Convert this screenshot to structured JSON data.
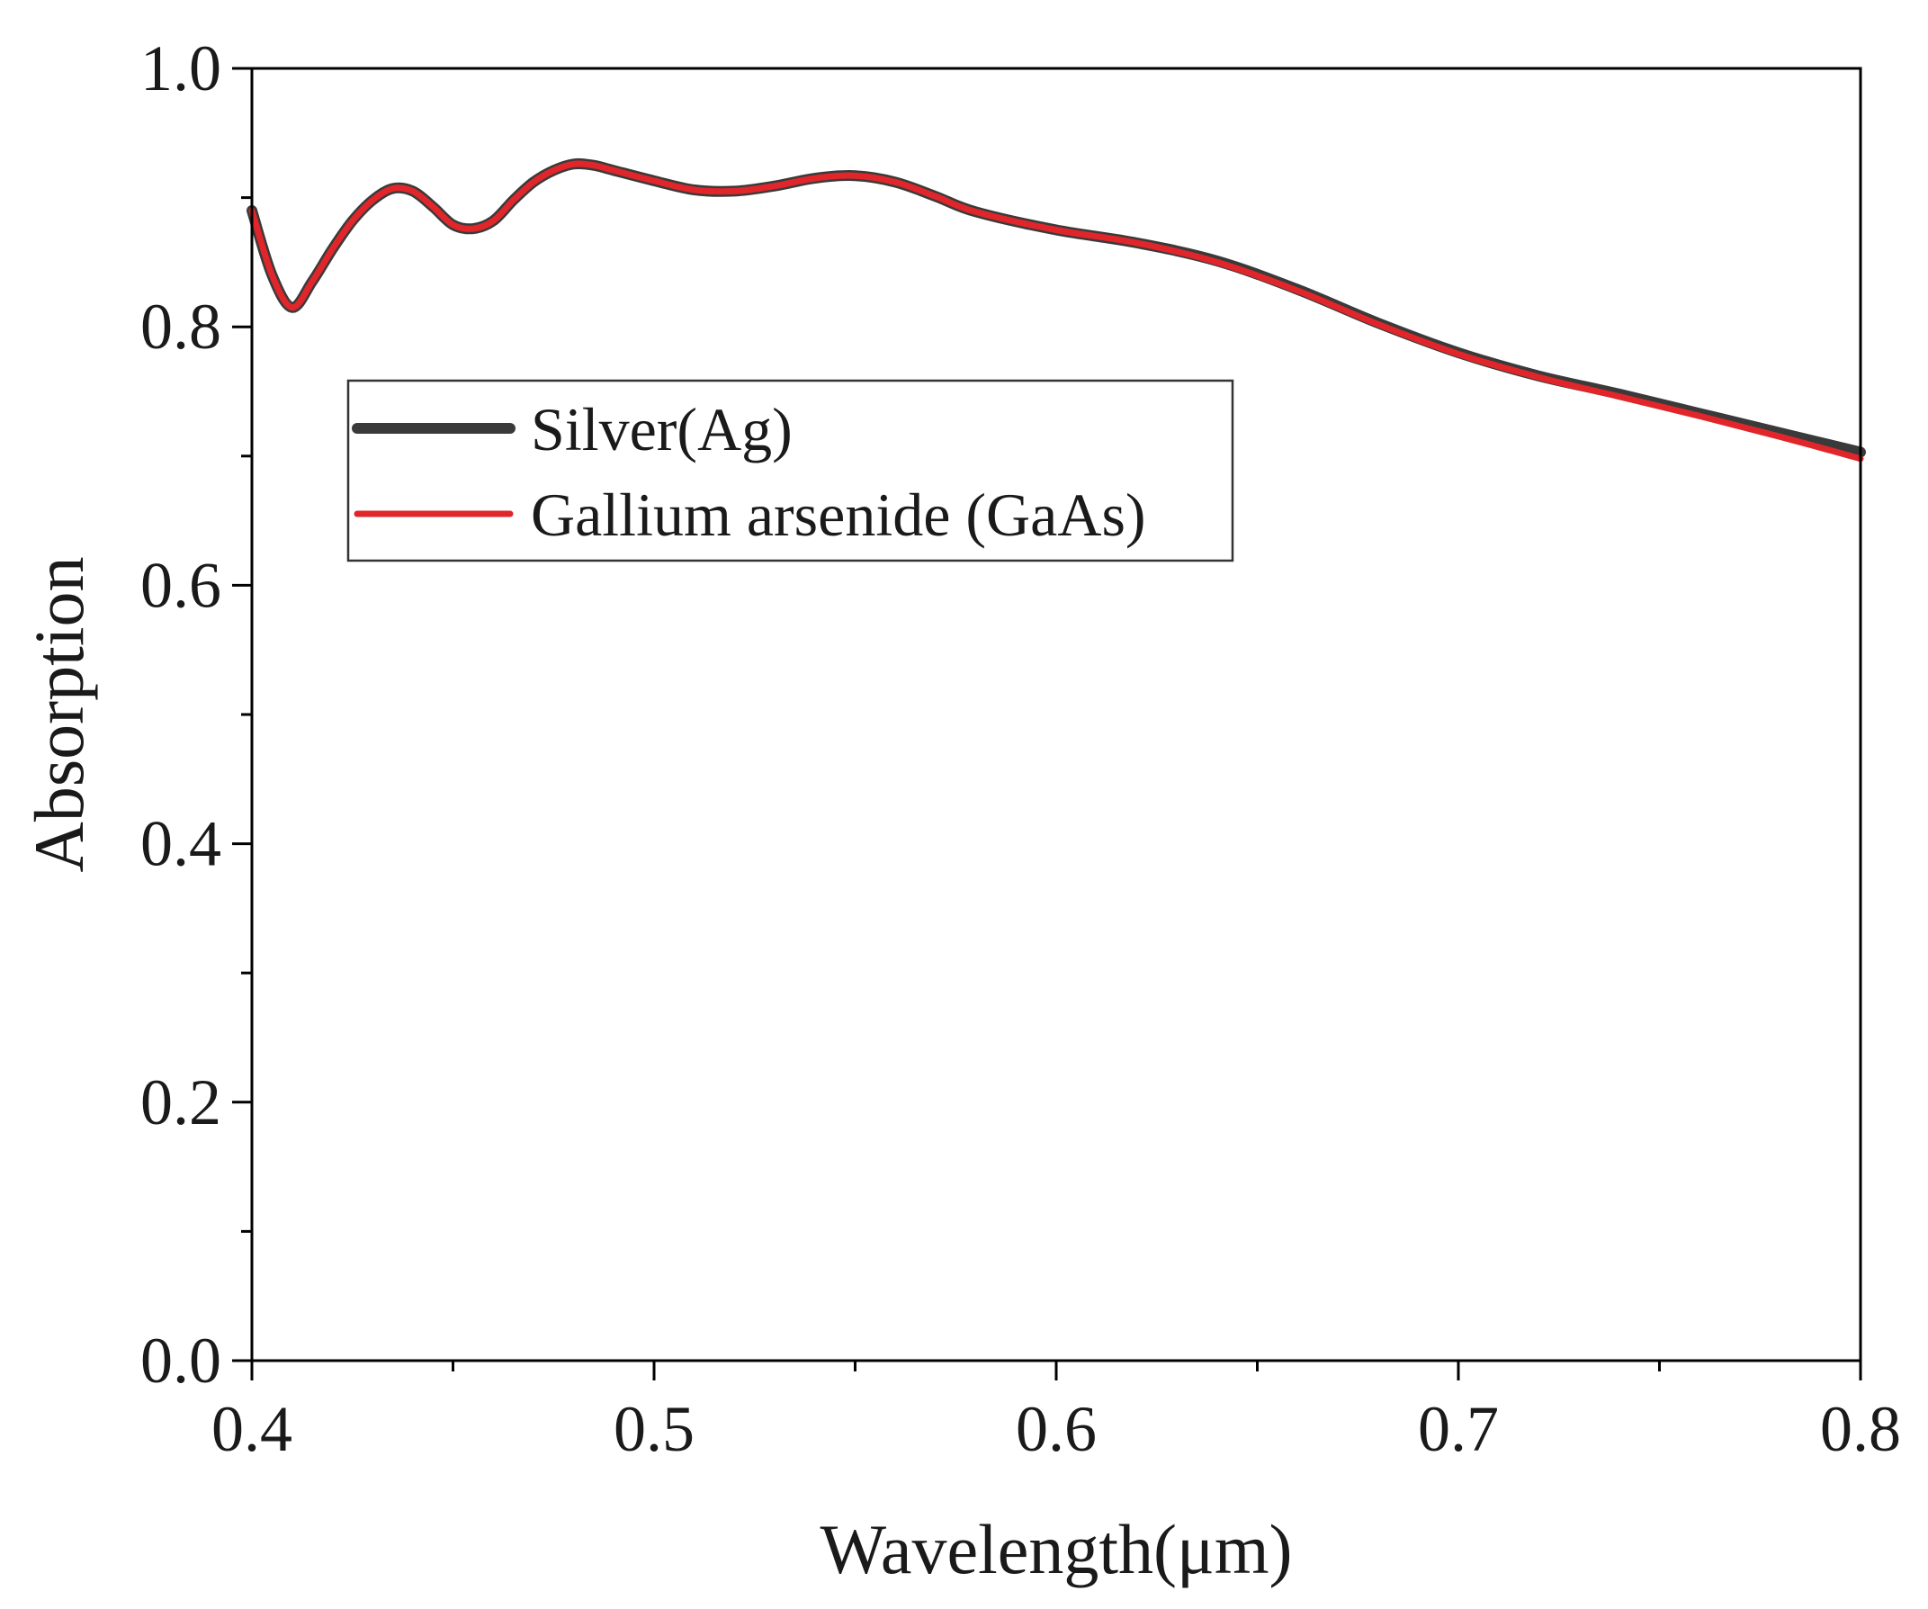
{
  "chart_data": {
    "type": "line",
    "title": "",
    "xlabel": "Wavelength(μm)",
    "ylabel": "Absorption",
    "xlim": [
      0.4,
      0.8
    ],
    "ylim": [
      0.0,
      1.0
    ],
    "x_ticks": [
      0.4,
      0.5,
      0.6,
      0.7,
      0.8
    ],
    "x_tick_labels": [
      "0.4",
      "0.5",
      "0.6",
      "0.7",
      "0.8"
    ],
    "y_ticks": [
      0.0,
      0.2,
      0.4,
      0.6,
      0.8,
      1.0
    ],
    "y_tick_labels": [
      "0.0",
      "0.2",
      "0.4",
      "0.6",
      "0.8",
      "1.0"
    ],
    "grid": false,
    "legend_position": "upper-left",
    "series": [
      {
        "name": "Silver(Ag)",
        "color": "#3a3a3a",
        "x": [
          0.4,
          0.405,
          0.41,
          0.415,
          0.42,
          0.425,
          0.43,
          0.435,
          0.44,
          0.445,
          0.45,
          0.455,
          0.46,
          0.465,
          0.47,
          0.475,
          0.48,
          0.485,
          0.49,
          0.5,
          0.51,
          0.52,
          0.53,
          0.54,
          0.55,
          0.56,
          0.57,
          0.58,
          0.6,
          0.62,
          0.64,
          0.66,
          0.68,
          0.7,
          0.72,
          0.74,
          0.76,
          0.78,
          0.8
        ],
        "y": [
          0.89,
          0.84,
          0.815,
          0.835,
          0.86,
          0.882,
          0.898,
          0.907,
          0.905,
          0.893,
          0.879,
          0.876,
          0.882,
          0.898,
          0.912,
          0.921,
          0.926,
          0.925,
          0.921,
          0.913,
          0.906,
          0.905,
          0.909,
          0.915,
          0.917,
          0.912,
          0.901,
          0.889,
          0.875,
          0.865,
          0.851,
          0.829,
          0.803,
          0.78,
          0.762,
          0.748,
          0.733,
          0.718,
          0.703
        ]
      },
      {
        "name": "Gallium arsenide (GaAs)",
        "color": "#e0262b",
        "x": [
          0.4,
          0.405,
          0.41,
          0.415,
          0.42,
          0.425,
          0.43,
          0.435,
          0.44,
          0.445,
          0.45,
          0.455,
          0.46,
          0.465,
          0.47,
          0.475,
          0.48,
          0.485,
          0.49,
          0.5,
          0.51,
          0.52,
          0.53,
          0.54,
          0.55,
          0.56,
          0.57,
          0.58,
          0.6,
          0.62,
          0.64,
          0.66,
          0.68,
          0.7,
          0.72,
          0.74,
          0.76,
          0.78,
          0.8
        ],
        "y": [
          0.89,
          0.84,
          0.815,
          0.835,
          0.86,
          0.882,
          0.898,
          0.907,
          0.905,
          0.893,
          0.879,
          0.876,
          0.882,
          0.898,
          0.912,
          0.921,
          0.926,
          0.925,
          0.921,
          0.913,
          0.906,
          0.905,
          0.909,
          0.915,
          0.917,
          0.912,
          0.901,
          0.889,
          0.875,
          0.865,
          0.85,
          0.828,
          0.802,
          0.779,
          0.761,
          0.746,
          0.731,
          0.715,
          0.698
        ]
      }
    ]
  }
}
